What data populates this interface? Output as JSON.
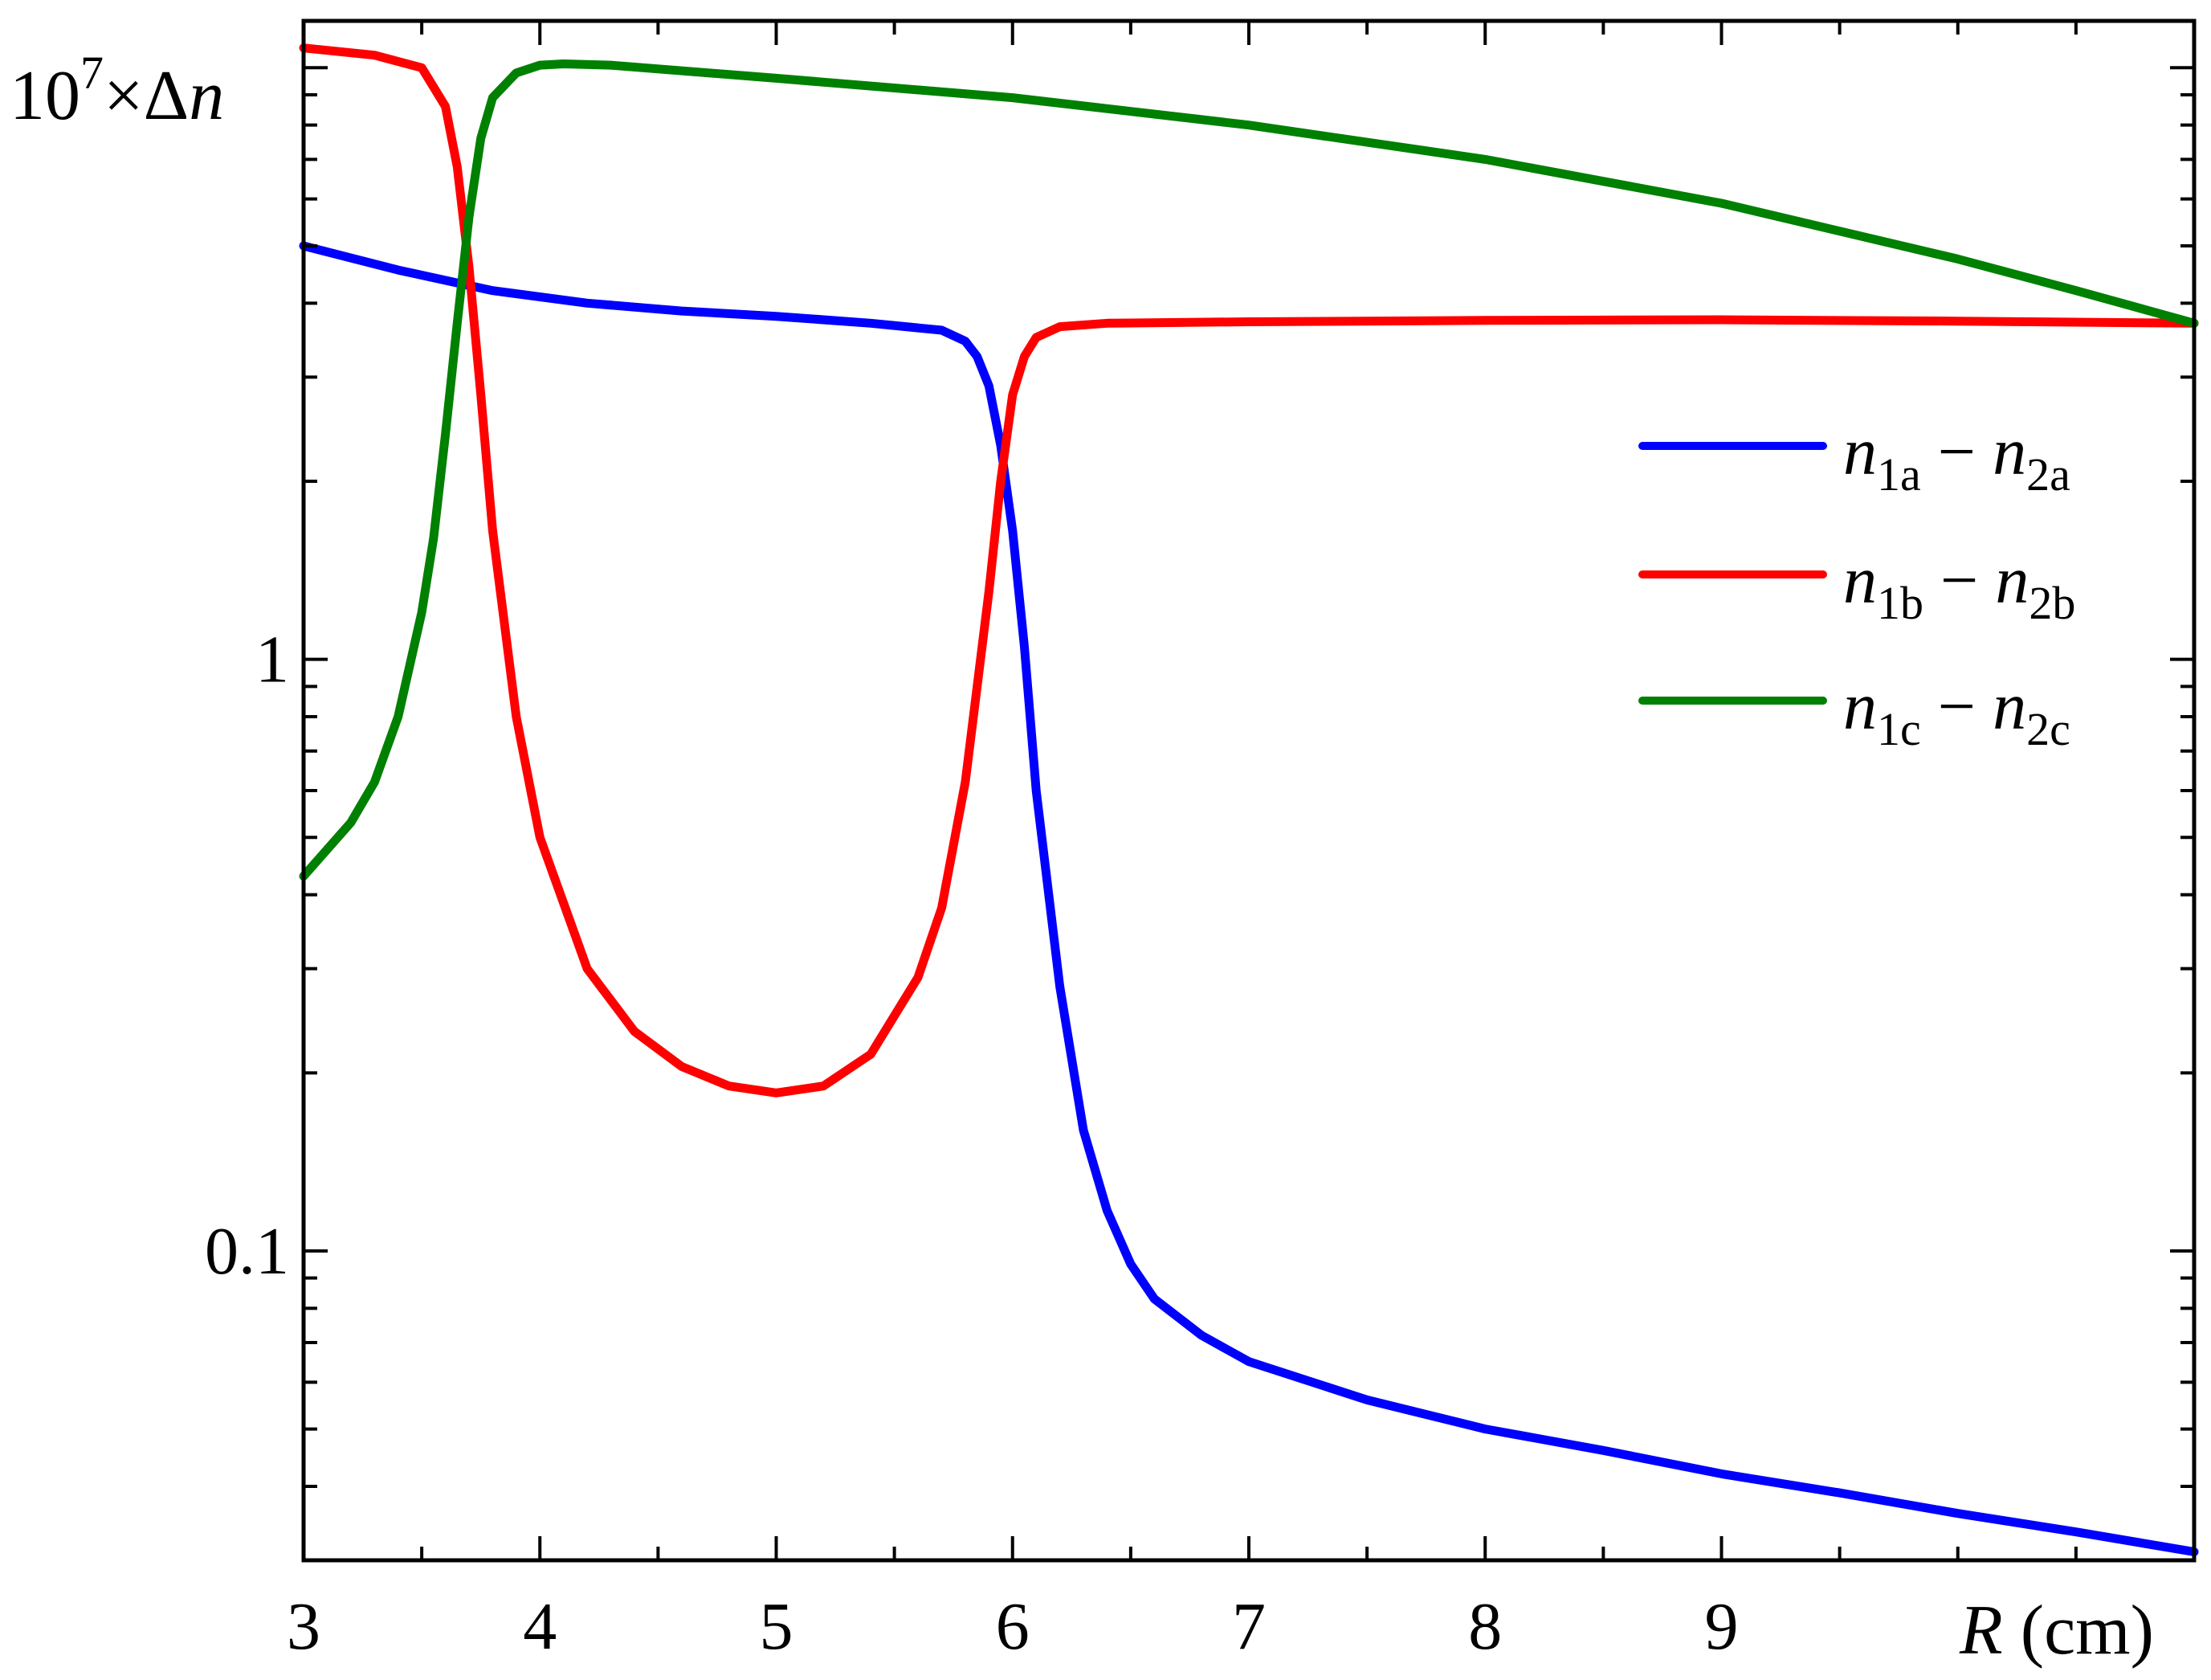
{
  "chart_data": {
    "type": "line",
    "title": "",
    "ylabel": {
      "prefix": "10",
      "exponent": "7",
      "times": "×Δ",
      "var": "n"
    },
    "xlabel": {
      "var": "R",
      "unit": " (cm)"
    },
    "y_scale": "log",
    "xlim": [
      3,
      11
    ],
    "ylim": [
      0.03,
      12
    ],
    "x_major_ticks": [
      3,
      4,
      5,
      6,
      7,
      8,
      9
    ],
    "x_tick_labels": [
      "3",
      "4",
      "5",
      "6",
      "7",
      "8",
      "9"
    ],
    "x_minor_ticks": [
      3.5,
      4.5,
      5.5,
      6.5,
      7.5,
      8.5,
      9.5,
      10,
      10.5
    ],
    "y_major_ticks": [
      0.1,
      1,
      10
    ],
    "y_tick_labels": [
      "0.1",
      "1",
      ""
    ],
    "y_minor_ticks": [
      0.04,
      0.05,
      0.06,
      0.07,
      0.08,
      0.09,
      0.2,
      0.3,
      0.4,
      0.5,
      0.6,
      0.7,
      0.8,
      0.9,
      2,
      3,
      4,
      5,
      6,
      7,
      8,
      9
    ],
    "grid": false,
    "legend_position": "right",
    "series": [
      {
        "name": "n1a − n2a",
        "label": {
          "n1": "n",
          "s1": "1a",
          "op": " − ",
          "n2": "n",
          "s2": "2a"
        },
        "color": "#0000ff",
        "x": [
          3.0,
          3.4,
          3.8,
          4.2,
          4.6,
          5.0,
          5.4,
          5.7,
          5.8,
          5.85,
          5.9,
          5.95,
          6.0,
          6.05,
          6.1,
          6.2,
          6.3,
          6.4,
          6.5,
          6.6,
          6.8,
          7.0,
          7.5,
          8.0,
          8.5,
          9.0,
          9.5,
          10.0,
          10.5,
          11.0
        ],
        "y": [
          5.0,
          4.55,
          4.2,
          4.0,
          3.88,
          3.8,
          3.7,
          3.6,
          3.45,
          3.25,
          2.9,
          2.3,
          1.65,
          1.05,
          0.6,
          0.28,
          0.16,
          0.117,
          0.095,
          0.083,
          0.072,
          0.065,
          0.056,
          0.05,
          0.046,
          0.042,
          0.039,
          0.036,
          0.0335,
          0.031
        ]
      },
      {
        "name": "n1b − n2b",
        "label": {
          "n1": "n",
          "s1": "1b",
          "op": " − ",
          "n2": "n",
          "s2": "2b"
        },
        "color": "#ff0000",
        "x": [
          3.0,
          3.3,
          3.5,
          3.6,
          3.65,
          3.7,
          3.75,
          3.8,
          3.9,
          4.0,
          4.2,
          4.4,
          4.6,
          4.8,
          5.0,
          5.2,
          5.4,
          5.6,
          5.7,
          5.8,
          5.9,
          5.95,
          6.0,
          6.05,
          6.1,
          6.2,
          6.4,
          7.0,
          8.0,
          9.0,
          10.0,
          11.0
        ],
        "y": [
          10.8,
          10.5,
          10.0,
          8.6,
          6.8,
          4.6,
          2.8,
          1.65,
          0.8,
          0.5,
          0.3,
          0.235,
          0.205,
          0.19,
          0.185,
          0.19,
          0.215,
          0.29,
          0.38,
          0.62,
          1.3,
          2.0,
          2.8,
          3.25,
          3.5,
          3.65,
          3.7,
          3.72,
          3.74,
          3.75,
          3.73,
          3.7
        ]
      },
      {
        "name": "n1c − n2c",
        "label": {
          "n1": "n",
          "s1": "1c",
          "op": " − ",
          "n2": "n",
          "s2": "2c"
        },
        "color": "#008000",
        "x": [
          3.0,
          3.2,
          3.3,
          3.4,
          3.5,
          3.55,
          3.6,
          3.65,
          3.7,
          3.75,
          3.8,
          3.9,
          4.0,
          4.1,
          4.3,
          5.0,
          6.0,
          7.0,
          8.0,
          9.0,
          10.0,
          10.5,
          11.0
        ],
        "y": [
          0.43,
          0.53,
          0.62,
          0.8,
          1.2,
          1.6,
          2.4,
          3.7,
          5.6,
          7.6,
          8.9,
          9.8,
          10.1,
          10.15,
          10.1,
          9.6,
          8.9,
          8.0,
          7.0,
          5.9,
          4.75,
          4.2,
          3.7
        ]
      }
    ]
  }
}
